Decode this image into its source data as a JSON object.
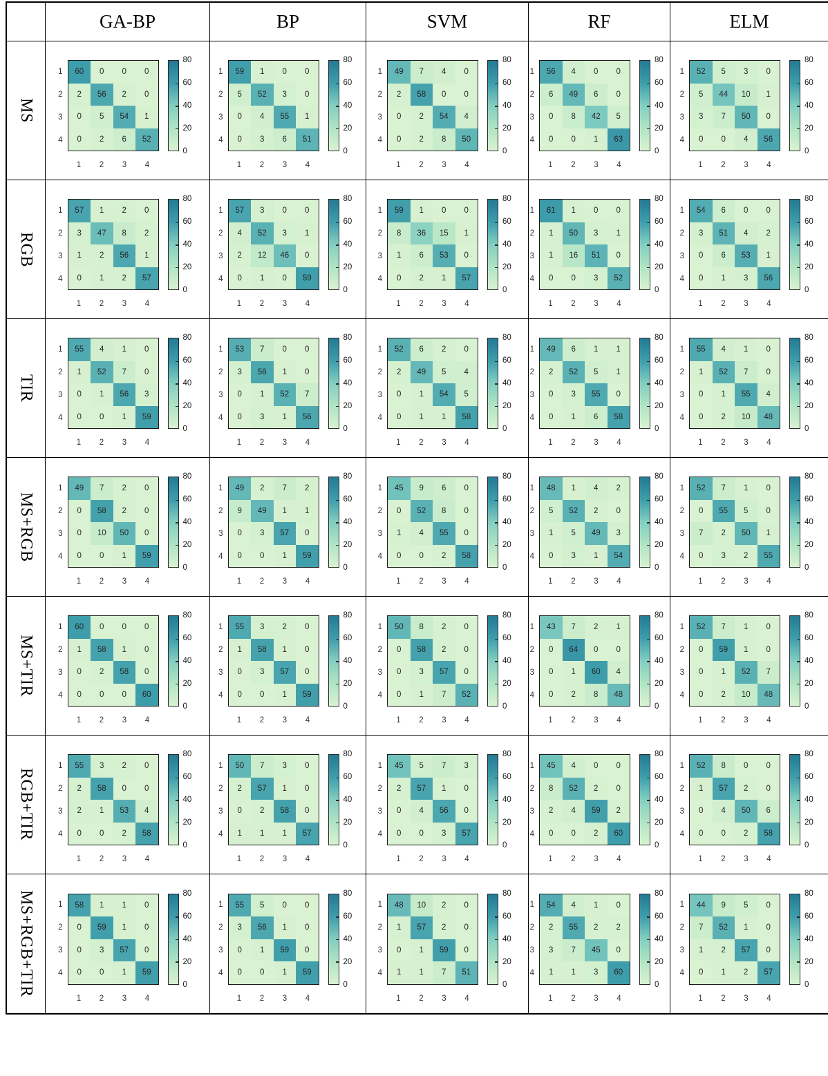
{
  "figure": {
    "description": "Grid of confusion matrices comparing five classifiers across seven sensor-data combinations"
  },
  "chart_data": {
    "type": "heatmap",
    "columns": [
      "GA-BP",
      "BP",
      "SVM",
      "RF",
      "ELM"
    ],
    "rows": [
      "MS",
      "RGB",
      "TIR",
      "MS+RGB",
      "MS+TIR",
      "RGB+TIR",
      "MS+RGB+TIR"
    ],
    "x_ticks": [
      "1",
      "2",
      "3",
      "4"
    ],
    "y_ticks": [
      "1",
      "2",
      "3",
      "4"
    ],
    "colorbar_ticks": [
      "80",
      "60",
      "40",
      "20",
      "0"
    ],
    "vmin": 0,
    "vmax": 80,
    "colormap_stops": [
      "#d9f2d1",
      "#b0e4c4",
      "#83cec1",
      "#3e9dab",
      "#247a94"
    ],
    "grid": false,
    "legend_position": "colorbar-right-of-each-panel",
    "panels": [
      {
        "row": "MS",
        "column": "GA-BP",
        "values": [
          [
            60,
            0,
            0,
            0
          ],
          [
            2,
            56,
            2,
            0
          ],
          [
            0,
            5,
            54,
            1
          ],
          [
            0,
            2,
            6,
            52
          ]
        ]
      },
      {
        "row": "MS",
        "column": "BP",
        "values": [
          [
            59,
            1,
            0,
            0
          ],
          [
            5,
            52,
            3,
            0
          ],
          [
            0,
            4,
            55,
            1
          ],
          [
            0,
            3,
            6,
            51
          ]
        ]
      },
      {
        "row": "MS",
        "column": "SVM",
        "values": [
          [
            49,
            7,
            4,
            0
          ],
          [
            2,
            58,
            0,
            0
          ],
          [
            0,
            2,
            54,
            4
          ],
          [
            0,
            2,
            8,
            50
          ]
        ]
      },
      {
        "row": "MS",
        "column": "RF",
        "values": [
          [
            56,
            4,
            0,
            0
          ],
          [
            6,
            49,
            6,
            0
          ],
          [
            0,
            8,
            42,
            5
          ],
          [
            0,
            0,
            1,
            63
          ]
        ]
      },
      {
        "row": "MS",
        "column": "ELM",
        "values": [
          [
            52,
            5,
            3,
            0
          ],
          [
            5,
            44,
            10,
            1
          ],
          [
            3,
            7,
            50,
            0
          ],
          [
            0,
            0,
            4,
            56
          ]
        ]
      },
      {
        "row": "RGB",
        "column": "GA-BP",
        "values": [
          [
            57,
            1,
            2,
            0
          ],
          [
            3,
            47,
            8,
            2
          ],
          [
            1,
            2,
            56,
            1
          ],
          [
            0,
            1,
            2,
            57
          ]
        ]
      },
      {
        "row": "RGB",
        "column": "BP",
        "values": [
          [
            57,
            3,
            0,
            0
          ],
          [
            4,
            52,
            3,
            1
          ],
          [
            2,
            12,
            46,
            0
          ],
          [
            0,
            1,
            0,
            59
          ]
        ]
      },
      {
        "row": "RGB",
        "column": "SVM",
        "values": [
          [
            59,
            1,
            0,
            0
          ],
          [
            8,
            36,
            15,
            1
          ],
          [
            1,
            6,
            53,
            0
          ],
          [
            0,
            2,
            1,
            57
          ]
        ]
      },
      {
        "row": "RGB",
        "column": "RF",
        "values": [
          [
            61,
            1,
            0,
            0
          ],
          [
            1,
            50,
            3,
            1
          ],
          [
            1,
            16,
            51,
            0
          ],
          [
            0,
            0,
            3,
            52
          ]
        ]
      },
      {
        "row": "RGB",
        "column": "ELM",
        "values": [
          [
            54,
            6,
            0,
            0
          ],
          [
            3,
            51,
            4,
            2
          ],
          [
            0,
            6,
            53,
            1
          ],
          [
            0,
            1,
            3,
            56
          ]
        ]
      },
      {
        "row": "TIR",
        "column": "GA-BP",
        "values": [
          [
            55,
            4,
            1,
            0
          ],
          [
            1,
            52,
            7,
            0
          ],
          [
            0,
            1,
            56,
            3
          ],
          [
            0,
            0,
            1,
            59
          ]
        ]
      },
      {
        "row": "TIR",
        "column": "BP",
        "values": [
          [
            53,
            7,
            0,
            0
          ],
          [
            3,
            56,
            1,
            0
          ],
          [
            0,
            1,
            52,
            7
          ],
          [
            0,
            3,
            1,
            56
          ]
        ]
      },
      {
        "row": "TIR",
        "column": "SVM",
        "values": [
          [
            52,
            6,
            2,
            0
          ],
          [
            2,
            49,
            5,
            4
          ],
          [
            0,
            1,
            54,
            5
          ],
          [
            0,
            1,
            1,
            58
          ]
        ]
      },
      {
        "row": "TIR",
        "column": "RF",
        "values": [
          [
            49,
            6,
            1,
            1
          ],
          [
            2,
            52,
            5,
            1
          ],
          [
            0,
            3,
            55,
            0
          ],
          [
            0,
            1,
            6,
            58
          ]
        ]
      },
      {
        "row": "TIR",
        "column": "ELM",
        "values": [
          [
            55,
            4,
            1,
            0
          ],
          [
            1,
            52,
            7,
            0
          ],
          [
            0,
            1,
            55,
            4
          ],
          [
            0,
            2,
            10,
            48
          ]
        ]
      },
      {
        "row": "MS+RGB",
        "column": "GA-BP",
        "values": [
          [
            49,
            7,
            2,
            0
          ],
          [
            0,
            58,
            2,
            0
          ],
          [
            0,
            10,
            50,
            0
          ],
          [
            0,
            0,
            1,
            59
          ]
        ]
      },
      {
        "row": "MS+RGB",
        "column": "BP",
        "values": [
          [
            49,
            2,
            7,
            2
          ],
          [
            9,
            49,
            1,
            1
          ],
          [
            0,
            3,
            57,
            0
          ],
          [
            0,
            0,
            1,
            59
          ]
        ]
      },
      {
        "row": "MS+RGB",
        "column": "SVM",
        "values": [
          [
            45,
            9,
            6,
            0
          ],
          [
            0,
            52,
            8,
            0
          ],
          [
            1,
            4,
            55,
            0
          ],
          [
            0,
            0,
            2,
            58
          ]
        ]
      },
      {
        "row": "MS+RGB",
        "column": "RF",
        "values": [
          [
            48,
            1,
            4,
            2
          ],
          [
            5,
            52,
            2,
            0
          ],
          [
            1,
            5,
            49,
            3
          ],
          [
            0,
            3,
            1,
            54
          ]
        ]
      },
      {
        "row": "MS+RGB",
        "column": "ELM",
        "values": [
          [
            52,
            7,
            1,
            0
          ],
          [
            0,
            55,
            5,
            0
          ],
          [
            7,
            2,
            50,
            1
          ],
          [
            0,
            3,
            2,
            55
          ]
        ]
      },
      {
        "row": "MS+TIR",
        "column": "GA-BP",
        "values": [
          [
            60,
            0,
            0,
            0
          ],
          [
            1,
            58,
            1,
            0
          ],
          [
            0,
            2,
            58,
            0
          ],
          [
            0,
            0,
            0,
            60
          ]
        ]
      },
      {
        "row": "MS+TIR",
        "column": "BP",
        "values": [
          [
            55,
            3,
            2,
            0
          ],
          [
            1,
            58,
            1,
            0
          ],
          [
            0,
            3,
            57,
            0
          ],
          [
            0,
            0,
            1,
            59
          ]
        ]
      },
      {
        "row": "MS+TIR",
        "column": "SVM",
        "values": [
          [
            50,
            8,
            2,
            0
          ],
          [
            0,
            58,
            2,
            0
          ],
          [
            0,
            3,
            57,
            0
          ],
          [
            0,
            1,
            7,
            52
          ]
        ]
      },
      {
        "row": "MS+TIR",
        "column": "RF",
        "values": [
          [
            43,
            7,
            2,
            1
          ],
          [
            0,
            64,
            0,
            0
          ],
          [
            0,
            1,
            60,
            4
          ],
          [
            0,
            2,
            8,
            48
          ]
        ]
      },
      {
        "row": "MS+TIR",
        "column": "ELM",
        "values": [
          [
            52,
            7,
            1,
            0
          ],
          [
            0,
            59,
            1,
            0
          ],
          [
            0,
            1,
            52,
            7
          ],
          [
            0,
            2,
            10,
            48
          ]
        ]
      },
      {
        "row": "RGB+TIR",
        "column": "GA-BP",
        "values": [
          [
            55,
            3,
            2,
            0
          ],
          [
            2,
            58,
            0,
            0
          ],
          [
            2,
            1,
            53,
            4
          ],
          [
            0,
            0,
            2,
            58
          ]
        ]
      },
      {
        "row": "RGB+TIR",
        "column": "BP",
        "values": [
          [
            50,
            7,
            3,
            0
          ],
          [
            2,
            57,
            1,
            0
          ],
          [
            0,
            2,
            58,
            0
          ],
          [
            1,
            1,
            1,
            57
          ]
        ]
      },
      {
        "row": "RGB+TIR",
        "column": "SVM",
        "values": [
          [
            45,
            5,
            7,
            3
          ],
          [
            2,
            57,
            1,
            0
          ],
          [
            0,
            4,
            56,
            0
          ],
          [
            0,
            0,
            3,
            57
          ]
        ]
      },
      {
        "row": "RGB+TIR",
        "column": "RF",
        "values": [
          [
            45,
            4,
            0,
            0
          ],
          [
            8,
            52,
            2,
            0
          ],
          [
            2,
            4,
            59,
            2
          ],
          [
            0,
            0,
            2,
            60
          ]
        ]
      },
      {
        "row": "RGB+TIR",
        "column": "ELM",
        "values": [
          [
            52,
            8,
            0,
            0
          ],
          [
            1,
            57,
            2,
            0
          ],
          [
            0,
            4,
            50,
            6
          ],
          [
            0,
            0,
            2,
            58
          ]
        ]
      },
      {
        "row": "MS+RGB+TIR",
        "column": "GA-BP",
        "values": [
          [
            58,
            1,
            1,
            0
          ],
          [
            0,
            59,
            1,
            0
          ],
          [
            0,
            3,
            57,
            0
          ],
          [
            0,
            0,
            1,
            59
          ]
        ]
      },
      {
        "row": "MS+RGB+TIR",
        "column": "BP",
        "values": [
          [
            55,
            5,
            0,
            0
          ],
          [
            3,
            56,
            1,
            0
          ],
          [
            0,
            1,
            59,
            0
          ],
          [
            0,
            0,
            1,
            59
          ]
        ]
      },
      {
        "row": "MS+RGB+TIR",
        "column": "SVM",
        "values": [
          [
            48,
            10,
            2,
            0
          ],
          [
            1,
            57,
            2,
            0
          ],
          [
            0,
            1,
            59,
            0
          ],
          [
            1,
            1,
            7,
            51
          ]
        ]
      },
      {
        "row": "MS+RGB+TIR",
        "column": "RF",
        "values": [
          [
            54,
            4,
            1,
            0
          ],
          [
            2,
            55,
            2,
            2
          ],
          [
            3,
            7,
            45,
            0
          ],
          [
            1,
            1,
            3,
            60
          ]
        ]
      },
      {
        "row": "MS+RGB+TIR",
        "column": "ELM",
        "values": [
          [
            44,
            9,
            5,
            0
          ],
          [
            7,
            52,
            1,
            0
          ],
          [
            1,
            2,
            57,
            0
          ],
          [
            0,
            1,
            2,
            57
          ]
        ]
      }
    ]
  }
}
